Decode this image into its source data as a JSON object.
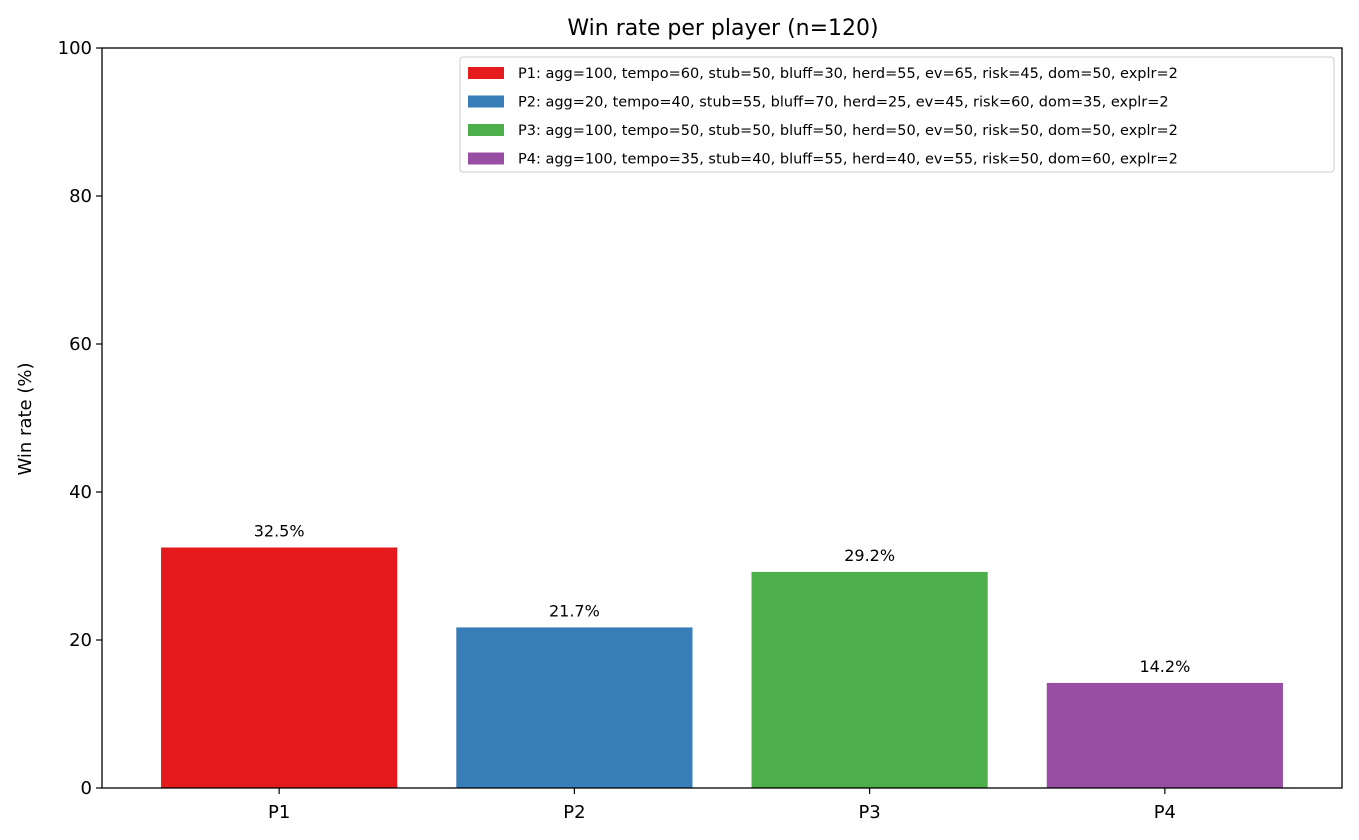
{
  "chart_data": {
    "type": "bar",
    "title": "Win rate per player (n=120)",
    "xlabel": "",
    "ylabel": "Win rate (%)",
    "ylim": [
      0,
      100
    ],
    "yticks": [
      "0",
      "20",
      "40",
      "60",
      "80",
      "100"
    ],
    "categories": [
      "P1",
      "P2",
      "P3",
      "P4"
    ],
    "values": [
      32.5,
      21.7,
      29.2,
      14.2
    ],
    "value_labels": [
      "32.5%",
      "21.7%",
      "29.2%",
      "14.2%"
    ],
    "colors": [
      "#e41a1c",
      "#377eb8",
      "#4daf4a",
      "#984ea3"
    ],
    "grid": false,
    "legend_position": "top-right",
    "legend": [
      "P1: agg=100, tempo=60, stub=50, bluff=30, herd=55, ev=65, risk=45, dom=50, explr=2",
      "P2: agg=20, tempo=40, stub=55, bluff=70, herd=25, ev=45, risk=60, dom=35, explr=2",
      "P3: agg=100, tempo=50, stub=50, bluff=50, herd=50, ev=50, risk=50, dom=50, explr=2",
      "P4: agg=100, tempo=35, stub=40, bluff=55, herd=40, ev=55, risk=50, dom=60, explr=2"
    ]
  }
}
